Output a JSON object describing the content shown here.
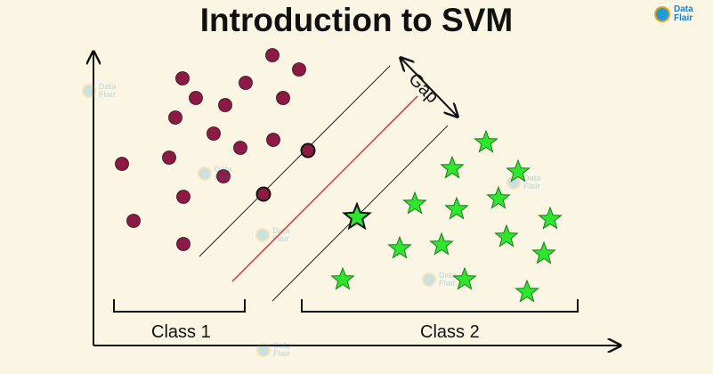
{
  "title": "Introduction to SVM",
  "brand": {
    "name": "Data Flair",
    "accent": "#1f9bd7",
    "ring": "#f0a020"
  },
  "labels": {
    "class1": "Class 1",
    "class2": "Class 2",
    "gap": "Gap"
  },
  "colors": {
    "class1_dot": "#8b1b45",
    "class2_star": "#2ee62e",
    "hyperplane": "#e03030",
    "margin": "#222222",
    "background": "#fbf6e4"
  }
}
